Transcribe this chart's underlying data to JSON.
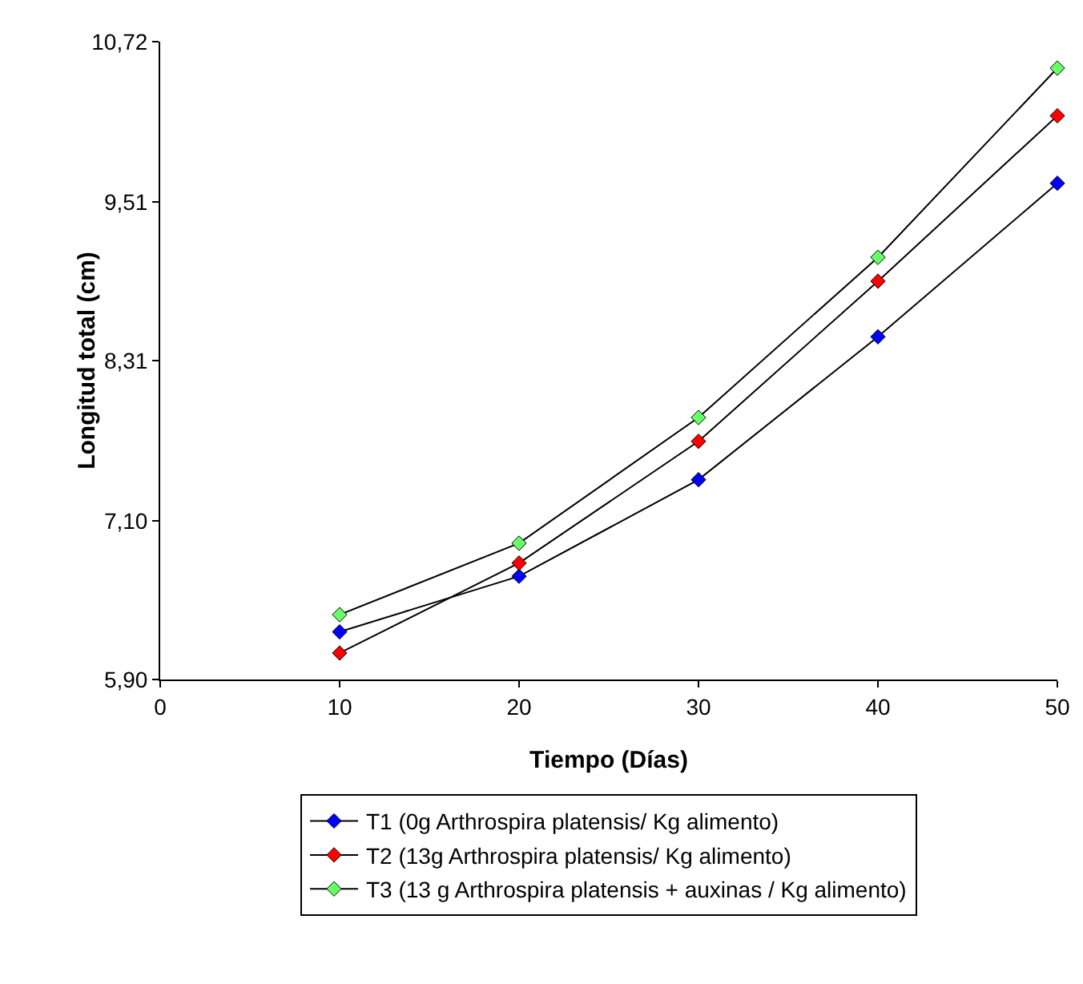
{
  "chart_data": {
    "type": "line",
    "xlabel": "Tiempo (Días)",
    "ylabel": "Longitud total (cm)",
    "x": [
      10,
      20,
      30,
      40,
      50
    ],
    "series": [
      {
        "name": "T1 (0g Arthrospira platensis/ Kg alimento)",
        "color": "#0000ff",
        "values": [
          6.26,
          6.68,
          7.41,
          8.49,
          9.65
        ]
      },
      {
        "name": "T2 (13g Arthrospira platensis/ Kg alimento)",
        "color": "#ff0000",
        "values": [
          6.1,
          6.78,
          7.7,
          8.91,
          10.16
        ]
      },
      {
        "name": "T3 (13 g Arthrospira platensis + auxinas / Kg alimento)",
        "color": "#66ff66",
        "values": [
          6.39,
          6.93,
          7.88,
          9.09,
          10.52
        ]
      }
    ],
    "xlim": [
      0,
      50
    ],
    "xticks": [
      0,
      10,
      20,
      30,
      40,
      50
    ],
    "ylim": [
      5.9,
      10.72
    ],
    "yticks": [
      {
        "value": 5.9,
        "label": "5,90"
      },
      {
        "value": 7.1,
        "label": "7,10"
      },
      {
        "value": 8.31,
        "label": "8,31"
      },
      {
        "value": 9.51,
        "label": "9,51"
      },
      {
        "value": 10.72,
        "label": "10,72"
      }
    ],
    "grid": false,
    "legend": "bottom",
    "marker": "diamond",
    "line_style": "solid"
  }
}
